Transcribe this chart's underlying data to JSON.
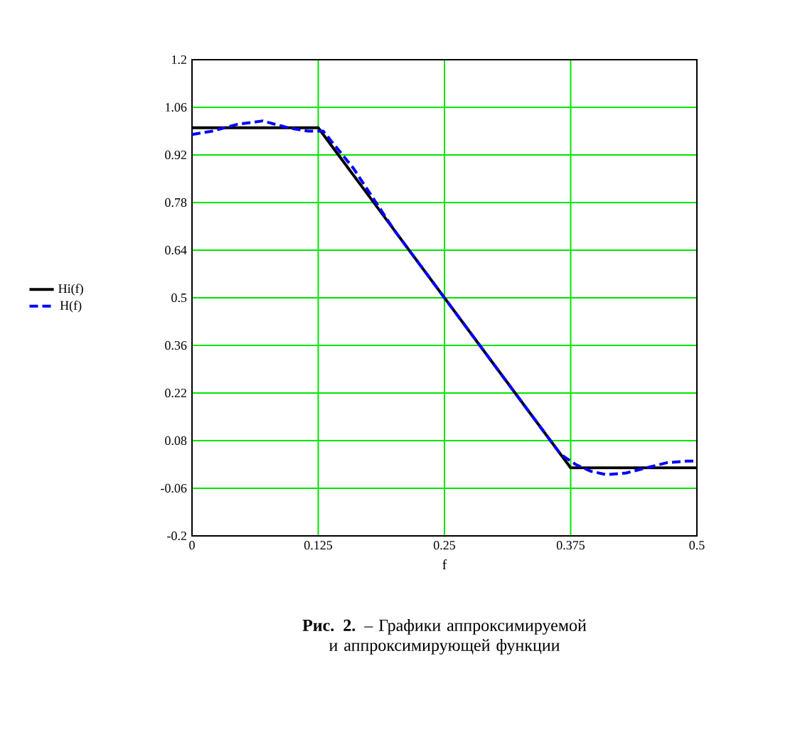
{
  "chart_data": {
    "type": "line",
    "xlabel": "f",
    "xlim": [
      0,
      0.5
    ],
    "xticks": [
      0,
      0.125,
      0.25,
      0.375,
      0.5
    ],
    "ylim": [
      -0.2,
      1.2
    ],
    "yticks": [
      -0.2,
      -0.06,
      0.08,
      0.22,
      0.36,
      0.5,
      0.64,
      0.78,
      0.92,
      1.06,
      1.2
    ],
    "grid": true,
    "legend": "left",
    "series": [
      {
        "name": "Hi(f)",
        "color": "#000000",
        "line_style": "solid",
        "x": [
          0,
          0.125,
          0.375,
          0.5
        ],
        "values": [
          1,
          1,
          0,
          0
        ]
      },
      {
        "name": "H(f)",
        "color": "#0000ff",
        "line_style": "dashed",
        "x": [
          0,
          0.02,
          0.045,
          0.07,
          0.095,
          0.115,
          0.13,
          0.16,
          0.2,
          0.25,
          0.3,
          0.34,
          0.365,
          0.38,
          0.395,
          0.41,
          0.43,
          0.45,
          0.47,
          0.49,
          0.5
        ],
        "values": [
          0.98,
          0.99,
          1.01,
          1.02,
          1.0,
          0.99,
          0.99,
          0.88,
          0.7,
          0.5,
          0.3,
          0.14,
          0.04,
          0.01,
          -0.01,
          -0.02,
          -0.015,
          0.0,
          0.015,
          0.02,
          0.02
        ]
      }
    ],
    "annotations": [
      "**Рис. 2.** – Графики аппроксимируемой и аппроксимирующей функции"
    ]
  }
}
